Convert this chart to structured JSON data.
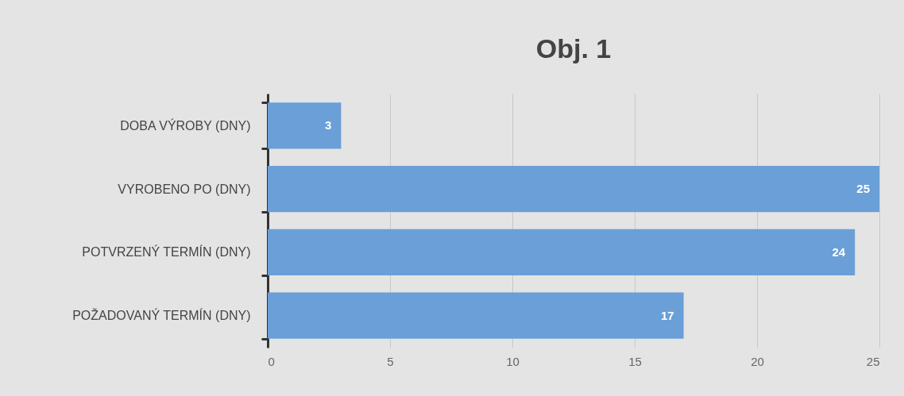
{
  "chart_data": {
    "type": "bar",
    "orientation": "horizontal",
    "title": "Obj. 1",
    "categories": [
      "DOBA VÝROBY (DNY)",
      "VYROBENO PO (DNY)",
      "POTVRZENÝ TERMÍN  (DNY)",
      "POŽADOVANÝ TERMÍN (DNY)"
    ],
    "values": [
      3,
      25,
      24,
      17
    ],
    "color": "#6a9fd8",
    "xlim": [
      0,
      25
    ],
    "xticks": [
      0,
      5,
      10,
      15,
      20,
      25
    ],
    "grid": "x",
    "data_labels": true
  }
}
